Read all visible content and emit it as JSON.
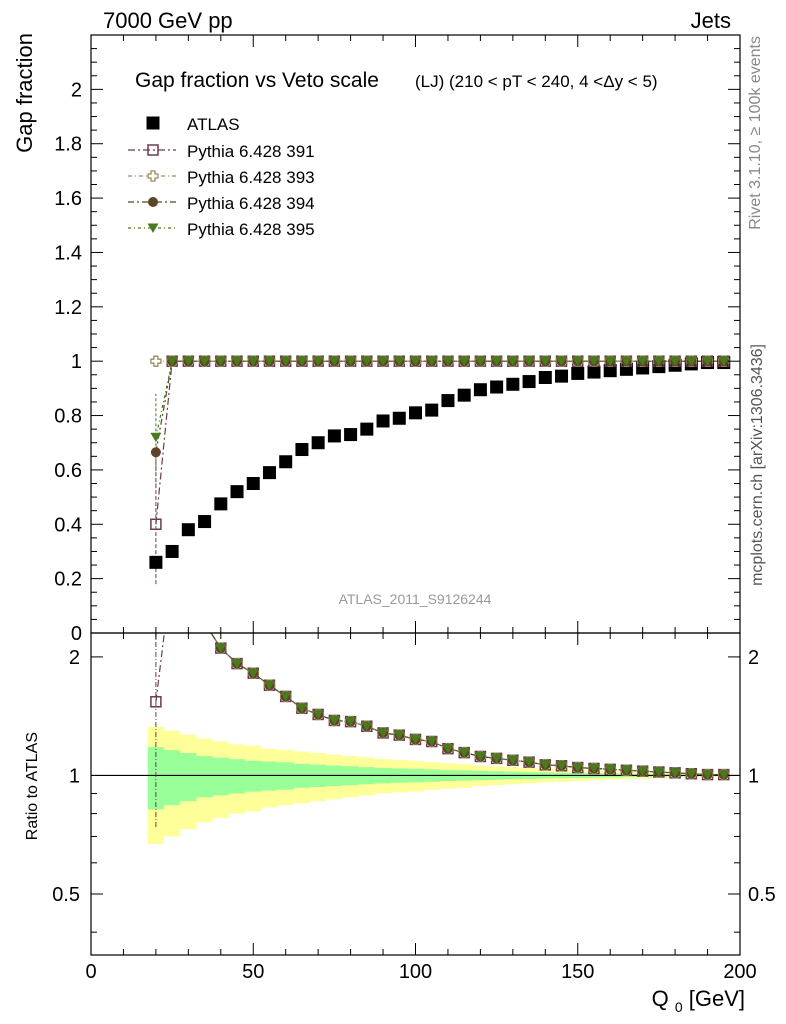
{
  "header": {
    "left": "7000 GeV pp",
    "right": "Jets"
  },
  "side_text": {
    "rivet": "Rivet 3.1.10, ≥ 100k events",
    "mcplots": "mcplots.cern.ch [arXiv:1306.3436]"
  },
  "chart_data": {
    "type": "scatter",
    "title": "Gap fraction vs Veto scale",
    "subtitle": "(LJ) (210 < pT < 240, 4 <Δy < 5)",
    "ylabel": "Gap fraction",
    "xlabel": "Q0 [GeV]",
    "ratio_ylabel": "Ratio to ATLAS",
    "watermark": "ATLAS_2011_S9126244",
    "xlim": [
      0,
      200
    ],
    "ylim": [
      0,
      2.2
    ],
    "ratio_ylim": [
      0.35,
      2.3
    ],
    "x_ticks": [
      "0",
      "50",
      "100",
      "150",
      "200"
    ],
    "y_ticks": [
      "0",
      "0.2",
      "0.4",
      "0.6",
      "0.8",
      "1",
      "1.2",
      "1.4",
      "1.6",
      "1.8",
      "2"
    ],
    "ratio_ticks": [
      "0.5",
      "1",
      "2"
    ],
    "x": [
      20,
      25,
      30,
      35,
      40,
      45,
      50,
      55,
      60,
      65,
      70,
      75,
      80,
      85,
      90,
      95,
      100,
      105,
      110,
      115,
      120,
      125,
      130,
      135,
      140,
      145,
      150,
      155,
      160,
      165,
      170,
      175,
      180,
      185,
      190,
      195
    ],
    "series": [
      {
        "name": "ATLAS",
        "marker": "filled-square",
        "color": "#000000",
        "values": [
          0.26,
          0.3,
          0.38,
          0.41,
          0.475,
          0.52,
          0.55,
          0.59,
          0.63,
          0.675,
          0.7,
          0.725,
          0.73,
          0.75,
          0.78,
          0.79,
          0.81,
          0.82,
          0.855,
          0.875,
          0.895,
          0.905,
          0.915,
          0.925,
          0.94,
          0.945,
          0.955,
          0.96,
          0.965,
          0.97,
          0.975,
          0.98,
          0.985,
          0.99,
          0.995,
          0.995
        ]
      },
      {
        "name": "Pythia 6.428 391",
        "marker": "open-square",
        "color": "#6b3a4f",
        "values": [
          0.4,
          1,
          1,
          1,
          1,
          1,
          1,
          1,
          1,
          1,
          1,
          1,
          1,
          1,
          1,
          1,
          1,
          1,
          1,
          1,
          1,
          1,
          1,
          1,
          1,
          1,
          1,
          1,
          1,
          1,
          1,
          1,
          1,
          1,
          1,
          1
        ]
      },
      {
        "name": "Pythia 6.428 393",
        "marker": "open-cross",
        "color": "#9c8a5a",
        "values": [
          1,
          1,
          1,
          1,
          1,
          1,
          1,
          1,
          1,
          1,
          1,
          1,
          1,
          1,
          1,
          1,
          1,
          1,
          1,
          1,
          1,
          1,
          1,
          1,
          1,
          1,
          1,
          1,
          1,
          1,
          1,
          1,
          1,
          1,
          1,
          1
        ]
      },
      {
        "name": "Pythia 6.428 394",
        "marker": "filled-circle",
        "color": "#5c4426",
        "values": [
          0.665,
          1,
          1,
          1,
          1,
          1,
          1,
          1,
          1,
          1,
          1,
          1,
          1,
          1,
          1,
          1,
          1,
          1,
          1,
          1,
          1,
          1,
          1,
          1,
          1,
          1,
          1,
          1,
          1,
          1,
          1,
          1,
          1,
          1,
          1,
          1
        ]
      },
      {
        "name": "Pythia 6.428 395",
        "marker": "filled-triangle-down",
        "color": "#4a7a1e",
        "values": [
          0.72,
          1,
          1,
          1,
          1,
          1,
          1,
          1,
          1,
          1,
          1,
          1,
          1,
          1,
          1,
          1,
          1,
          1,
          1,
          1,
          1,
          1,
          1,
          1,
          1,
          1,
          1,
          1,
          1,
          1,
          1,
          1,
          1,
          1,
          1,
          1
        ]
      }
    ],
    "ratio_band_x_edges": [
      17.5,
      22.5,
      27.5,
      32.5,
      37.5,
      42.5,
      47.5,
      52.5,
      57.5,
      62.5,
      67.5,
      72.5,
      77.5,
      82.5,
      87.5,
      92.5,
      97.5,
      102.5,
      107.5,
      112.5,
      117.5,
      122.5,
      127.5,
      132.5,
      137.5,
      142.5,
      147.5,
      152.5,
      157.5,
      162.5,
      167.5,
      172.5,
      177.5,
      182.5,
      187.5,
      192.5,
      197.5
    ],
    "ratio_band_inner": [
      0.18,
      0.16,
      0.14,
      0.12,
      0.11,
      0.1,
      0.09,
      0.085,
      0.08,
      0.07,
      0.065,
      0.06,
      0.055,
      0.05,
      0.045,
      0.042,
      0.04,
      0.036,
      0.032,
      0.03,
      0.027,
      0.025,
      0.022,
      0.02,
      0.018,
      0.016,
      0.015,
      0.013,
      0.012,
      0.01,
      0.009,
      0.008,
      0.007,
      0.006,
      0.005,
      0.004
    ],
    "ratio_band_outer": [
      0.33,
      0.3,
      0.27,
      0.24,
      0.22,
      0.2,
      0.19,
      0.17,
      0.16,
      0.15,
      0.14,
      0.13,
      0.12,
      0.11,
      0.1,
      0.095,
      0.09,
      0.08,
      0.075,
      0.07,
      0.06,
      0.055,
      0.05,
      0.045,
      0.04,
      0.036,
      0.032,
      0.028,
      0.025,
      0.022,
      0.019,
      0.016,
      0.014,
      0.012,
      0.01,
      0.008
    ]
  }
}
